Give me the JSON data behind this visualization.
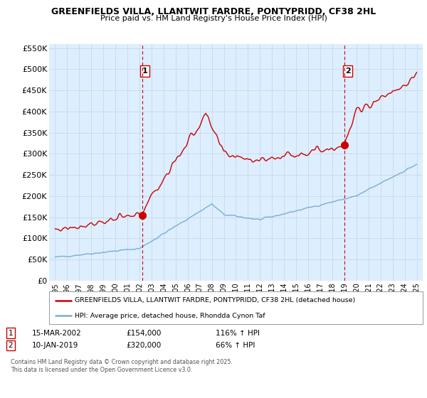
{
  "title": "GREENFIELDS VILLA, LLANTWIT FARDRE, PONTYPRIDD, CF38 2HL",
  "subtitle": "Price paid vs. HM Land Registry's House Price Index (HPI)",
  "legend_line1": "GREENFIELDS VILLA, LLANTWIT FARDRE, PONTYPRIDD, CF38 2HL (detached house)",
  "legend_line2": "HPI: Average price, detached house, Rhondda Cynon Taf",
  "red_color": "#cc0000",
  "blue_color": "#7aadd4",
  "vline_color": "#cc0000",
  "grid_color": "#c8d8e8",
  "bg_color": "#ddeeff",
  "plot_bg": "#ddeeff",
  "white": "#ffffff",
  "sale1_date_num": 2002.21,
  "sale1_price": 154000,
  "sale2_date_num": 2019.03,
  "sale2_price": 320000,
  "ylim": [
    0,
    560000
  ],
  "xlim": [
    1994.5,
    2025.5
  ],
  "yticks": [
    0,
    50000,
    100000,
    150000,
    200000,
    250000,
    300000,
    350000,
    400000,
    450000,
    500000,
    550000
  ],
  "ytick_labels": [
    "£0",
    "£50K",
    "£100K",
    "£150K",
    "£200K",
    "£250K",
    "£300K",
    "£350K",
    "£400K",
    "£450K",
    "£500K",
    "£550K"
  ],
  "xticks": [
    1995,
    1996,
    1997,
    1998,
    1999,
    2000,
    2001,
    2002,
    2003,
    2004,
    2005,
    2006,
    2007,
    2008,
    2009,
    2010,
    2011,
    2012,
    2013,
    2014,
    2015,
    2016,
    2017,
    2018,
    2019,
    2020,
    2021,
    2022,
    2023,
    2024,
    2025
  ],
  "footnote": "Contains HM Land Registry data © Crown copyright and database right 2025.\nThis data is licensed under the Open Government Licence v3.0."
}
